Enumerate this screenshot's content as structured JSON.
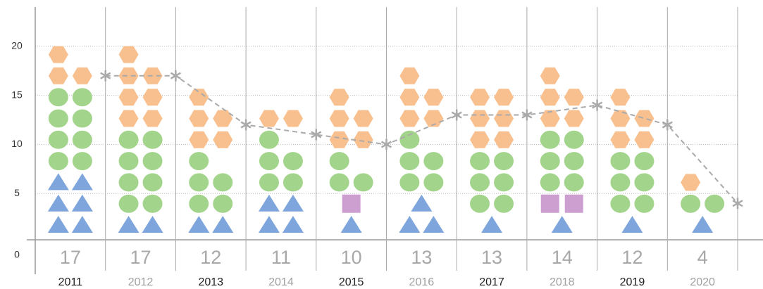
{
  "chart_data": {
    "type": "pictogram",
    "categories": [
      "2011",
      "2012",
      "2013",
      "2014",
      "2015",
      "2016",
      "2017",
      "2018",
      "2019",
      "2020"
    ],
    "series": [
      {
        "shape": "triangle",
        "color": "#7fa6dc",
        "values": [
          6,
          2,
          2,
          4,
          1,
          3,
          1,
          1,
          1,
          1
        ]
      },
      {
        "shape": "square",
        "color": "#cc9fd0",
        "values": [
          0,
          0,
          0,
          0,
          1,
          0,
          0,
          2,
          0,
          0
        ]
      },
      {
        "shape": "circle",
        "color": "#a3d48b",
        "values": [
          8,
          8,
          5,
          5,
          3,
          5,
          6,
          6,
          6,
          2
        ]
      },
      {
        "shape": "hexagon",
        "color": "#f9c08f",
        "values": [
          3,
          7,
          5,
          2,
          5,
          5,
          6,
          5,
          5,
          1
        ]
      }
    ],
    "totals": [
      17,
      17,
      12,
      11,
      10,
      13,
      13,
      14,
      12,
      4
    ],
    "line_color": "#aaaaaa",
    "ylim": [
      0,
      24
    ],
    "yticks": [
      0,
      5,
      10,
      15,
      20
    ],
    "grid": true
  }
}
